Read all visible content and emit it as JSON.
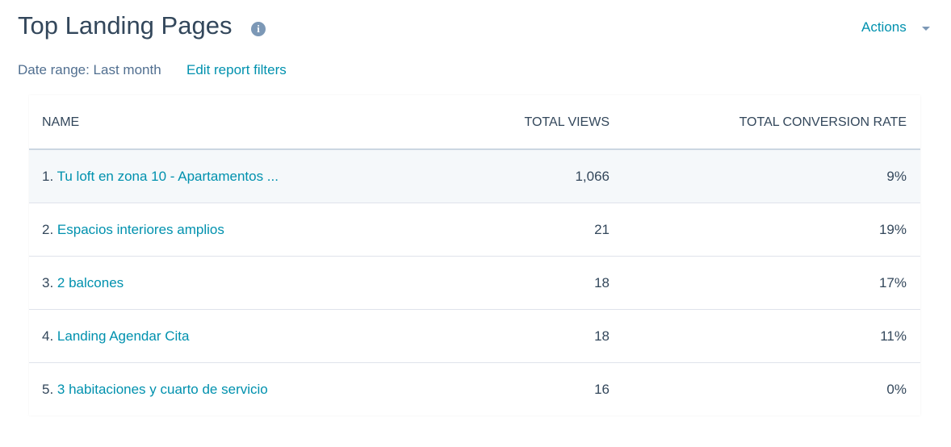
{
  "header": {
    "title": "Top Landing Pages",
    "actions": "Actions",
    "date_range": "Date range: Last month",
    "edit_filters": "Edit report filters"
  },
  "table": {
    "columns": [
      "NAME",
      "TOTAL VIEWS",
      "TOTAL CONVERSION RATE"
    ],
    "rows": [
      {
        "rank": "1.",
        "name": "Tu loft en zona 10 - Apartamentos ...",
        "views": "1,066",
        "rate": "9%"
      },
      {
        "rank": "2.",
        "name": "Espacios interiores amplios",
        "views": "21",
        "rate": "19%"
      },
      {
        "rank": "3.",
        "name": "2 balcones",
        "views": "18",
        "rate": "17%"
      },
      {
        "rank": "4.",
        "name": "Landing Agendar Cita",
        "views": "18",
        "rate": "11%"
      },
      {
        "rank": "5.",
        "name": "3 habitaciones y cuarto de servicio",
        "views": "16",
        "rate": "0%"
      }
    ]
  }
}
